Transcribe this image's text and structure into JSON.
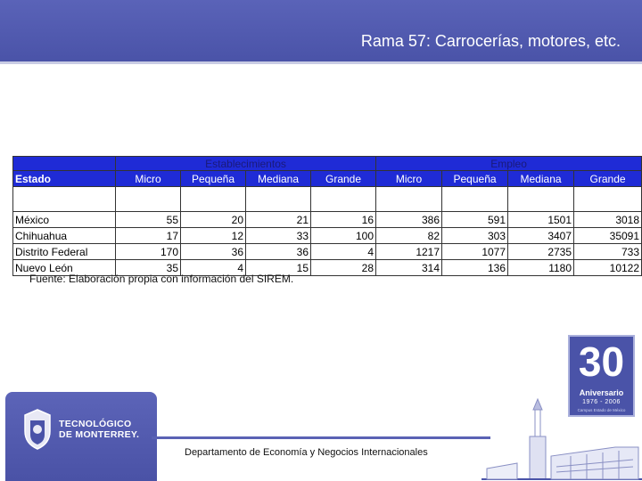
{
  "header": {
    "title": "Rama 57: Carrocerías, motores, etc."
  },
  "table": {
    "group_headers": {
      "blank": "",
      "establecimientos": "Establecimientos",
      "empleo": "Empleo"
    },
    "columns": [
      "Estado",
      "Micro",
      "Pequeña",
      "Mediana",
      "Grande",
      "Micro",
      "Pequeña",
      "Mediana",
      "Grande"
    ],
    "rows": [
      {
        "estado": "México",
        "values": [
          "55",
          "20",
          "21",
          "16",
          "386",
          "591",
          "1501",
          "3018"
        ]
      },
      {
        "estado": "Chihuahua",
        "values": [
          "17",
          "12",
          "33",
          "100",
          "82",
          "303",
          "3407",
          "35091"
        ]
      },
      {
        "estado": "Distrito Federal",
        "values": [
          "170",
          "36",
          "36",
          "4",
          "1217",
          "1077",
          "2735",
          "733"
        ]
      },
      {
        "estado": "Nuevo León",
        "values": [
          "35",
          "4",
          "15",
          "28",
          "314",
          "136",
          "1180",
          "10122"
        ]
      }
    ]
  },
  "source_note": "Fuente: Elaboración propia con información del SIREM.",
  "footer": {
    "department": "Departamento de Economía y Negocios Internacionales",
    "logo_line1": "TECNOLÓGICO",
    "logo_line2": "DE MONTERREY."
  },
  "badge": {
    "number": "30",
    "label": "Aniversario",
    "years": "1976 - 2006",
    "campus": "Campus Estado de México"
  },
  "colors": {
    "header_blue": "#4a53a8",
    "table_header_blue": "#1f2bd6"
  }
}
